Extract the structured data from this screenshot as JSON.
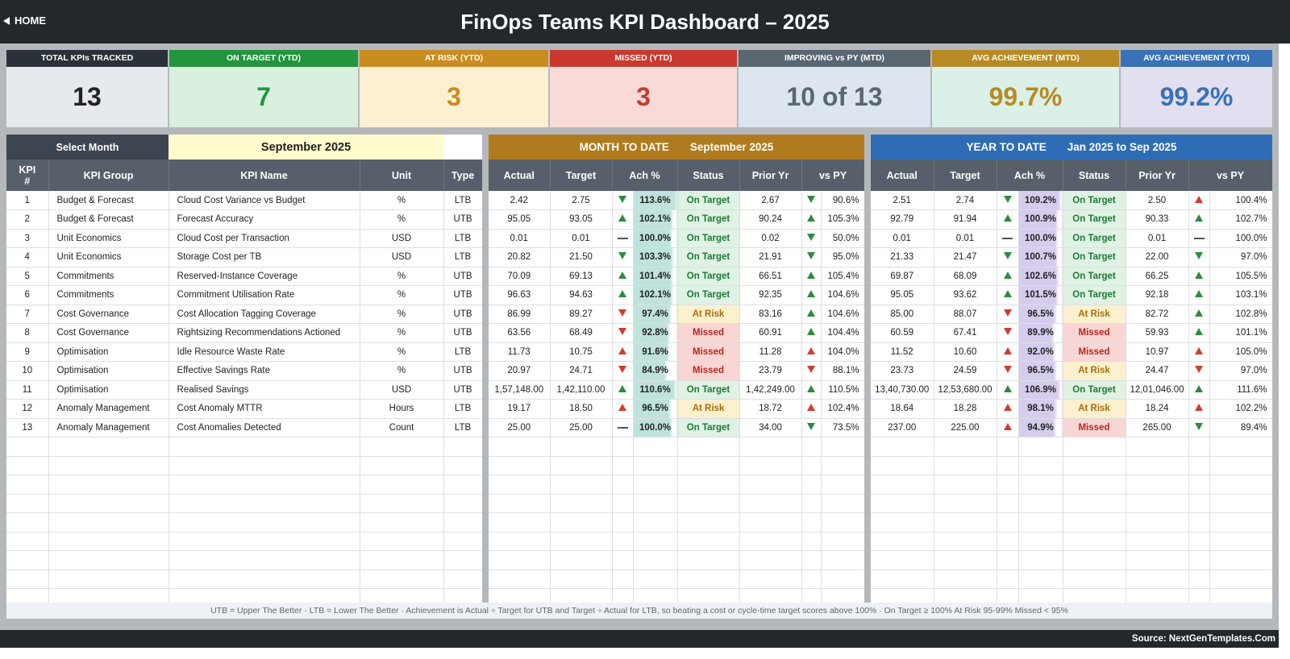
{
  "header": {
    "home_label": "HOME",
    "title": "FinOps Teams KPI Dashboard   –   2025"
  },
  "cards": [
    {
      "label": "TOTAL KPIs TRACKED",
      "value": "13",
      "label_bg": "#2b3138",
      "value_bg": "#e6e9ee",
      "value_color": "#222222"
    },
    {
      "label": "ON TARGET (YTD)",
      "value": "7",
      "label_bg": "#23953f",
      "value_bg": "#d9f0df",
      "value_color": "#23953f"
    },
    {
      "label": "AT RISK (YTD)",
      "value": "3",
      "label_bg": "#c98c1e",
      "value_bg": "#fdf0d2",
      "value_color": "#c98c1e"
    },
    {
      "label": "MISSED (YTD)",
      "value": "3",
      "label_bg": "#c9392f",
      "value_bg": "#f8dbd9",
      "value_color": "#c9392f"
    },
    {
      "label": "IMPROVING vs PY (MTD)",
      "value": "10 of 13",
      "label_bg": "#5a6670",
      "value_bg": "#dde6ee",
      "value_color": "#5a6670"
    },
    {
      "label": "AVG ACHIEVEMENT (MTD)",
      "value": "99.7%",
      "label_bg": "#b88a23",
      "value_bg": "#dbf1e7",
      "value_color": "#b88a23"
    },
    {
      "label": "AVG ACHIEVEMENT (YTD)",
      "value": "99.2%",
      "label_bg": "#3a72b8",
      "value_bg": "#e2dff0",
      "value_color": "#3a72b8"
    }
  ],
  "selector": {
    "label": "Select Month",
    "value": "September 2025"
  },
  "left_headers": {
    "kpi_num": "KPI\n#",
    "group": "KPI Group",
    "name": "KPI Name",
    "unit": "Unit",
    "type": "Type"
  },
  "mtd": {
    "band_label": "MONTH TO DATE",
    "band_period": "September 2025",
    "band_color": "#b07b1e"
  },
  "ytd": {
    "band_label": "YEAR TO DATE",
    "band_period": "Jan 2025  to  Sep 2025",
    "band_color": "#2e6db5"
  },
  "metric_headers": {
    "actual": "Actual",
    "target": "Target",
    "ach": "Ach %",
    "status": "Status",
    "prior": "Prior Yr",
    "vspy": "vs PY"
  },
  "rows": [
    {
      "num": "1",
      "group": "Budget & Forecast",
      "name": "Cloud Cost Variance vs Budget",
      "unit": "%",
      "type": "LTB",
      "m": {
        "actual": "2.42",
        "target": "2.75",
        "ach_icon": "down-g",
        "ach": "113.6%",
        "status": "On Target",
        "prior": "2.67",
        "py_icon": "down-g",
        "vspy": "90.6%"
      },
      "y": {
        "actual": "2.51",
        "target": "2.74",
        "ach_icon": "down-g",
        "ach": "109.2%",
        "status": "On Target",
        "prior": "2.50",
        "py_icon": "up-r",
        "vspy": "100.4%"
      }
    },
    {
      "num": "2",
      "group": "Budget & Forecast",
      "name": "Forecast Accuracy",
      "unit": "%",
      "type": "UTB",
      "m": {
        "actual": "95.05",
        "target": "93.05",
        "ach_icon": "up",
        "ach": "102.1%",
        "status": "On Target",
        "prior": "90.24",
        "py_icon": "up",
        "vspy": "105.3%"
      },
      "y": {
        "actual": "92.79",
        "target": "91.94",
        "ach_icon": "up",
        "ach": "100.9%",
        "status": "On Target",
        "prior": "90.33",
        "py_icon": "up",
        "vspy": "102.7%"
      }
    },
    {
      "num": "3",
      "group": "Unit Economics",
      "name": "Cloud Cost per Transaction",
      "unit": "USD",
      "type": "LTB",
      "m": {
        "actual": "0.01",
        "target": "0.01",
        "ach_icon": "flat",
        "ach": "100.0%",
        "status": "On Target",
        "prior": "0.02",
        "py_icon": "down-g",
        "vspy": "50.0%"
      },
      "y": {
        "actual": "0.01",
        "target": "0.01",
        "ach_icon": "flat",
        "ach": "100.0%",
        "status": "On Target",
        "prior": "0.01",
        "py_icon": "flat",
        "vspy": "100.0%"
      }
    },
    {
      "num": "4",
      "group": "Unit Economics",
      "name": "Storage Cost per TB",
      "unit": "USD",
      "type": "LTB",
      "m": {
        "actual": "20.82",
        "target": "21.50",
        "ach_icon": "down-g",
        "ach": "103.3%",
        "status": "On Target",
        "prior": "21.91",
        "py_icon": "down-g",
        "vspy": "95.0%"
      },
      "y": {
        "actual": "21.33",
        "target": "21.47",
        "ach_icon": "down-g",
        "ach": "100.7%",
        "status": "On Target",
        "prior": "22.00",
        "py_icon": "down-g",
        "vspy": "97.0%"
      }
    },
    {
      "num": "5",
      "group": "Commitments",
      "name": "Reserved-Instance Coverage",
      "unit": "%",
      "type": "UTB",
      "m": {
        "actual": "70.09",
        "target": "69.13",
        "ach_icon": "up",
        "ach": "101.4%",
        "status": "On Target",
        "prior": "66.51",
        "py_icon": "up",
        "vspy": "105.4%"
      },
      "y": {
        "actual": "69.87",
        "target": "68.09",
        "ach_icon": "up",
        "ach": "102.6%",
        "status": "On Target",
        "prior": "66.25",
        "py_icon": "up",
        "vspy": "105.5%"
      }
    },
    {
      "num": "6",
      "group": "Commitments",
      "name": "Commitment Utilisation Rate",
      "unit": "%",
      "type": "UTB",
      "m": {
        "actual": "96.63",
        "target": "94.63",
        "ach_icon": "up",
        "ach": "102.1%",
        "status": "On Target",
        "prior": "92.35",
        "py_icon": "up",
        "vspy": "104.6%"
      },
      "y": {
        "actual": "95.05",
        "target": "93.62",
        "ach_icon": "up",
        "ach": "101.5%",
        "status": "On Target",
        "prior": "92.18",
        "py_icon": "up",
        "vspy": "103.1%"
      }
    },
    {
      "num": "7",
      "group": "Cost Governance",
      "name": "Cost Allocation Tagging Coverage",
      "unit": "%",
      "type": "UTB",
      "m": {
        "actual": "86.99",
        "target": "89.27",
        "ach_icon": "down-r",
        "ach": "97.4%",
        "status": "At Risk",
        "prior": "83.16",
        "py_icon": "up",
        "vspy": "104.6%"
      },
      "y": {
        "actual": "85.00",
        "target": "88.07",
        "ach_icon": "down-r",
        "ach": "96.5%",
        "status": "At Risk",
        "prior": "82.72",
        "py_icon": "up",
        "vspy": "102.8%"
      }
    },
    {
      "num": "8",
      "group": "Cost Governance",
      "name": "Rightsizing Recommendations Actioned",
      "unit": "%",
      "type": "UTB",
      "m": {
        "actual": "63.56",
        "target": "68.49",
        "ach_icon": "down-r",
        "ach": "92.8%",
        "status": "Missed",
        "prior": "60.91",
        "py_icon": "up",
        "vspy": "104.4%"
      },
      "y": {
        "actual": "60.59",
        "target": "67.41",
        "ach_icon": "down-r",
        "ach": "89.9%",
        "status": "Missed",
        "prior": "59.93",
        "py_icon": "up",
        "vspy": "101.1%"
      }
    },
    {
      "num": "9",
      "group": "Optimisation",
      "name": "Idle Resource Waste Rate",
      "unit": "%",
      "type": "LTB",
      "m": {
        "actual": "11.73",
        "target": "10.75",
        "ach_icon": "up-r",
        "ach": "91.6%",
        "status": "Missed",
        "prior": "11.28",
        "py_icon": "up-r",
        "vspy": "104.0%"
      },
      "y": {
        "actual": "11.52",
        "target": "10.60",
        "ach_icon": "up-r",
        "ach": "92.0%",
        "status": "Missed",
        "prior": "10.97",
        "py_icon": "up-r",
        "vspy": "105.0%"
      }
    },
    {
      "num": "10",
      "group": "Optimisation",
      "name": "Effective Savings Rate",
      "unit": "%",
      "type": "UTB",
      "m": {
        "actual": "20.97",
        "target": "24.71",
        "ach_icon": "down-r",
        "ach": "84.9%",
        "status": "Missed",
        "prior": "23.79",
        "py_icon": "down-r",
        "vspy": "88.1%"
      },
      "y": {
        "actual": "23.73",
        "target": "24.59",
        "ach_icon": "down-r",
        "ach": "96.5%",
        "status": "At Risk",
        "prior": "24.47",
        "py_icon": "down-r",
        "vspy": "97.0%"
      }
    },
    {
      "num": "11",
      "group": "Optimisation",
      "name": "Realised Savings",
      "unit": "USD",
      "type": "UTB",
      "m": {
        "actual": "1,57,148.00",
        "target": "1,42,110.00",
        "ach_icon": "up",
        "ach": "110.6%",
        "status": "On Target",
        "prior": "1,42,249.00",
        "py_icon": "up",
        "vspy": "110.5%"
      },
      "y": {
        "actual": "13,40,730.00",
        "target": "12,53,680.00",
        "ach_icon": "up",
        "ach": "106.9%",
        "status": "On Target",
        "prior": "12,01,046.00",
        "py_icon": "up",
        "vspy": "111.6%"
      }
    },
    {
      "num": "12",
      "group": "Anomaly Management",
      "name": "Cost Anomaly MTTR",
      "unit": "Hours",
      "type": "LTB",
      "m": {
        "actual": "19.17",
        "target": "18.50",
        "ach_icon": "up-r",
        "ach": "96.5%",
        "status": "At Risk",
        "prior": "18.72",
        "py_icon": "up-r",
        "vspy": "102.4%"
      },
      "y": {
        "actual": "18.64",
        "target": "18.28",
        "ach_icon": "up-r",
        "ach": "98.1%",
        "status": "At Risk",
        "prior": "18.24",
        "py_icon": "up-r",
        "vspy": "102.2%"
      }
    },
    {
      "num": "13",
      "group": "Anomaly Management",
      "name": "Cost Anomalies Detected",
      "unit": "Count",
      "type": "LTB",
      "m": {
        "actual": "25.00",
        "target": "25.00",
        "ach_icon": "flat",
        "ach": "100.0%",
        "status": "On Target",
        "prior": "34.00",
        "py_icon": "down-g",
        "vspy": "73.5%"
      },
      "y": {
        "actual": "237.00",
        "target": "225.00",
        "ach_icon": "up-r",
        "ach": "94.9%",
        "status": "Missed",
        "prior": "265.00",
        "py_icon": "down-g",
        "vspy": "89.4%"
      }
    }
  ],
  "legend": "UTB = Upper The Better   ·   LTB = Lower The Better   ·   Achievement is Actual ÷ Target for UTB and Target ÷ Actual for LTB, so beating a cost or cycle-time target scores above 100%   ·   On Target ≥ 100%    At Risk 95-99%    Missed < 95%",
  "footer": {
    "source": "Source: NextGenTemplates.Com"
  }
}
